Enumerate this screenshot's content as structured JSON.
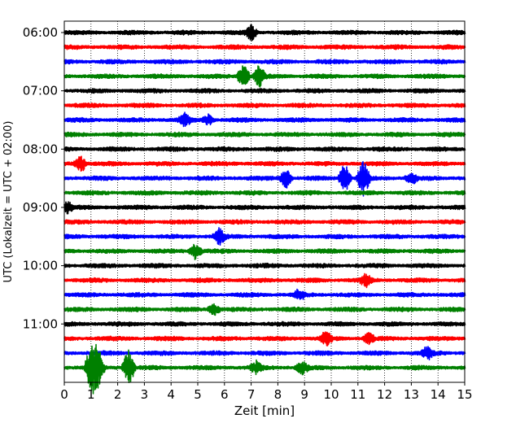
{
  "chart_data": {
    "type": "line",
    "title": "",
    "xlabel": "Zeit  [min]",
    "ylabel": "UTC (Lokalzeit = UTC + 02:00)",
    "xlim": [
      0,
      15
    ],
    "x_ticks": [
      "0",
      "1",
      "2",
      "3",
      "4",
      "5",
      "6",
      "7",
      "8",
      "9",
      "10",
      "11",
      "12",
      "13",
      "14",
      "15"
    ],
    "y_ticks": [
      "06:00",
      "07:00",
      "08:00",
      "09:00",
      "10:00",
      "11:00"
    ],
    "grid": "vertical dotted at each minute",
    "trace_colors": [
      "#000000",
      "#ff0000",
      "#0000ff",
      "#008000"
    ],
    "traces": [
      {
        "start": "06:00",
        "color": "#000000",
        "events": [
          {
            "t": 7.0,
            "amp": 1.2
          }
        ]
      },
      {
        "start": "06:15",
        "color": "#ff0000",
        "events": []
      },
      {
        "start": "06:30",
        "color": "#0000ff",
        "events": []
      },
      {
        "start": "06:45",
        "color": "#008000",
        "events": [
          {
            "t": 6.7,
            "amp": 2.2
          },
          {
            "t": 7.3,
            "amp": 1.8
          }
        ]
      },
      {
        "start": "07:00",
        "color": "#000000",
        "events": []
      },
      {
        "start": "07:15",
        "color": "#ff0000",
        "events": []
      },
      {
        "start": "07:30",
        "color": "#0000ff",
        "events": [
          {
            "t": 4.5,
            "amp": 1.0
          },
          {
            "t": 5.4,
            "amp": 0.8
          }
        ]
      },
      {
        "start": "07:45",
        "color": "#008000",
        "events": []
      },
      {
        "start": "08:00",
        "color": "#000000",
        "events": []
      },
      {
        "start": "08:15",
        "color": "#ff0000",
        "events": [
          {
            "t": 0.6,
            "amp": 1.5
          }
        ]
      },
      {
        "start": "08:30",
        "color": "#0000ff",
        "events": [
          {
            "t": 8.3,
            "amp": 1.6
          },
          {
            "t": 10.5,
            "amp": 2.5
          },
          {
            "t": 11.2,
            "amp": 3.0
          },
          {
            "t": 13.0,
            "amp": 1.0
          }
        ]
      },
      {
        "start": "08:45",
        "color": "#008000",
        "events": []
      },
      {
        "start": "09:00",
        "color": "#000000",
        "events": [
          {
            "t": 0.1,
            "amp": 1.0
          }
        ]
      },
      {
        "start": "09:15",
        "color": "#ff0000",
        "events": []
      },
      {
        "start": "09:30",
        "color": "#0000ff",
        "events": [
          {
            "t": 5.8,
            "amp": 1.3
          }
        ]
      },
      {
        "start": "09:45",
        "color": "#008000",
        "events": [
          {
            "t": 4.9,
            "amp": 1.4
          }
        ]
      },
      {
        "start": "10:00",
        "color": "#000000",
        "events": []
      },
      {
        "start": "10:15",
        "color": "#ff0000",
        "events": [
          {
            "t": 11.3,
            "amp": 1.0
          }
        ]
      },
      {
        "start": "10:30",
        "color": "#0000ff",
        "events": [
          {
            "t": 8.8,
            "amp": 0.9
          }
        ]
      },
      {
        "start": "10:45",
        "color": "#008000",
        "events": [
          {
            "t": 5.6,
            "amp": 0.9
          }
        ]
      },
      {
        "start": "11:00",
        "color": "#000000",
        "events": []
      },
      {
        "start": "11:15",
        "color": "#ff0000",
        "events": [
          {
            "t": 9.8,
            "amp": 1.2
          },
          {
            "t": 11.4,
            "amp": 0.9
          }
        ]
      },
      {
        "start": "11:30",
        "color": "#0000ff",
        "events": [
          {
            "t": 13.6,
            "amp": 1.0
          }
        ]
      },
      {
        "start": "11:45",
        "color": "#008000",
        "events": [
          {
            "t": 1.0,
            "amp": 4.0
          },
          {
            "t": 1.25,
            "amp": 3.5
          },
          {
            "t": 2.4,
            "amp": 3.0
          },
          {
            "t": 7.2,
            "amp": 1.0
          },
          {
            "t": 8.9,
            "amp": 1.0
          }
        ]
      }
    ]
  }
}
